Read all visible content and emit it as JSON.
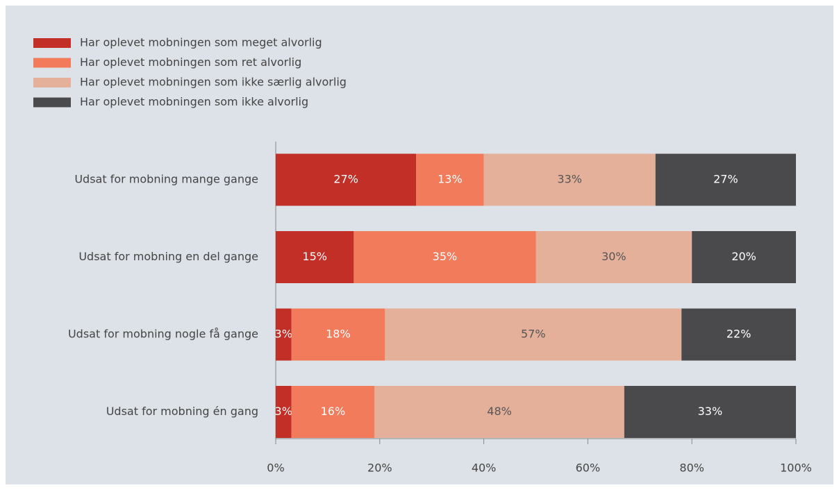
{
  "chart_data": {
    "type": "stacked_barh",
    "categories": [
      "Udsat for mobning mange gange",
      "Udsat for mobning en del gange",
      "Udsat for mobning nogle få gange",
      "Udsat for mobning én gang"
    ],
    "series": [
      {
        "name": "Har oplevet mobningen som meget alvorlig",
        "color": "#c12f27",
        "values": [
          27,
          15,
          3,
          3
        ],
        "value_labels": [
          "27%",
          "15%",
          "3%",
          "3%"
        ]
      },
      {
        "name": "Har oplevet mobningen som ret alvorlig",
        "color": "#f17b5b",
        "values": [
          13,
          35,
          18,
          16
        ],
        "value_labels": [
          "13%",
          "35%",
          "18%",
          "16%"
        ]
      },
      {
        "name": "Har oplevet mobningen som ikke særlig alvorlig",
        "color": "#e5b09a",
        "values": [
          33,
          30,
          57,
          48
        ],
        "value_labels": [
          "33%",
          "30%",
          "57%",
          "48%"
        ]
      },
      {
        "name": "Har oplevet mobningen som ikke alvorlig",
        "color": "#4a4a4c",
        "values": [
          27,
          20,
          22,
          33
        ],
        "value_labels": [
          "27%",
          "20%",
          "22%",
          "33%"
        ]
      }
    ],
    "xlim": [
      0,
      100
    ],
    "xticks": [
      {
        "value": 0,
        "label": "0%"
      },
      {
        "value": 20,
        "label": "20%"
      },
      {
        "value": 40,
        "label": "40%"
      },
      {
        "value": 60,
        "label": "60%"
      },
      {
        "value": 80,
        "label": "80%"
      },
      {
        "value": 100,
        "label": "100%"
      }
    ],
    "legend": "top-left"
  }
}
